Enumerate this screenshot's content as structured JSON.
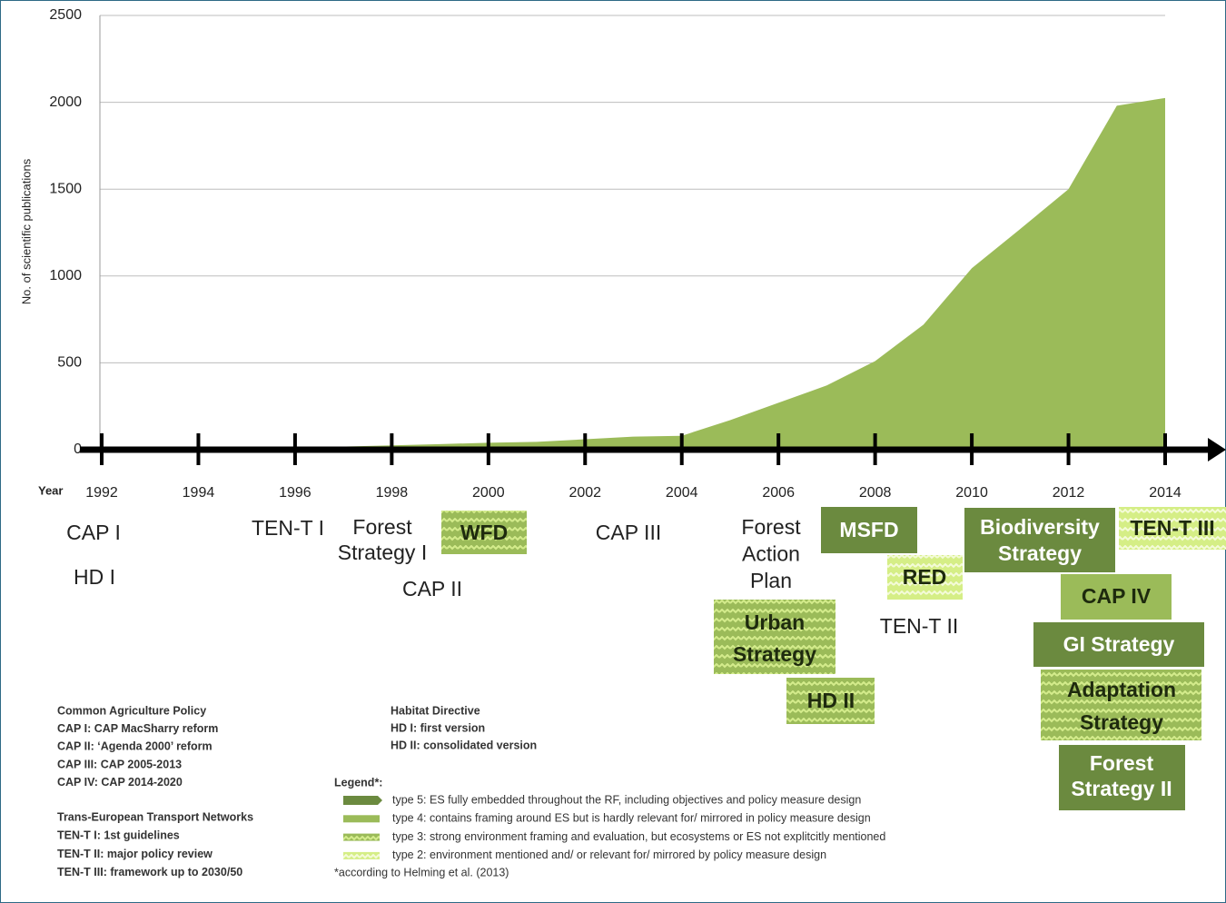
{
  "chart_data": {
    "type": "area",
    "ylabel": "No. of scientific publications",
    "xlabel": "Year",
    "x": [
      1992,
      1993,
      1994,
      1995,
      1996,
      1997,
      1998,
      1999,
      2000,
      2001,
      2002,
      2003,
      2004,
      2005,
      2006,
      2007,
      2008,
      2009,
      2010,
      2011,
      2012,
      2013,
      2014
    ],
    "series": [
      {
        "color": "#9bbb59",
        "values": [
          0,
          2,
          5,
          8,
          12,
          18,
          25,
          32,
          40,
          45,
          60,
          75,
          80,
          170,
          270,
          370,
          510,
          720,
          1045,
          1270,
          1500,
          1980,
          2025
        ]
      }
    ],
    "xlim": [
      1992,
      2014
    ],
    "xticks": [
      1992,
      1994,
      1996,
      1998,
      2000,
      2002,
      2004,
      2006,
      2008,
      2010,
      2012,
      2014
    ],
    "ylim": [
      0,
      2500
    ],
    "yticks": [
      0,
      500,
      1000,
      1500,
      2000,
      2500
    ],
    "grid": true,
    "annotations": [
      {
        "lines": [
          "CAP I"
        ],
        "kind": null
      },
      {
        "lines": [
          "HD I"
        ],
        "kind": null
      },
      {
        "lines": [
          "TEN-T I"
        ],
        "kind": null
      },
      {
        "lines": [
          "Forest",
          "Strategy I"
        ],
        "kind": null
      },
      {
        "lines": [
          "WFD"
        ],
        "kind": 3
      },
      {
        "lines": [
          "CAP III"
        ],
        "kind": null
      },
      {
        "lines": [
          "CAP II"
        ],
        "kind": null
      },
      {
        "lines": [
          "Forest",
          "Action",
          "Plan"
        ],
        "kind": null
      },
      {
        "lines": [
          "MSFD"
        ],
        "kind": 5
      },
      {
        "lines": [
          "RED"
        ],
        "kind": 2
      },
      {
        "lines": [
          "TEN-T II"
        ],
        "kind": null
      },
      {
        "lines": [
          "Biodiversity",
          "Strategy"
        ],
        "kind": 5
      },
      {
        "lines": [
          "TEN-T III"
        ],
        "kind": 2
      },
      {
        "lines": [
          "CAP IV"
        ],
        "kind": 4
      },
      {
        "lines": [
          "GI Strategy"
        ],
        "kind": 5
      },
      {
        "lines": [
          "Urban",
          "Strategy"
        ],
        "kind": 3
      },
      {
        "lines": [
          "HD II"
        ],
        "kind": 3
      },
      {
        "lines": [
          "Adaptation",
          "Strategy"
        ],
        "kind": 3
      },
      {
        "lines": [
          "Forest",
          "Strategy II"
        ],
        "kind": 5
      }
    ],
    "glossary": [
      [
        "Common Agriculture Policy",
        "CAP I: CAP MacSharry reform",
        "CAP II: ‘Agenda 2000’ reform",
        "CAP III: CAP 2005-2013",
        "CAP IV: CAP 2014-2020"
      ],
      [
        "Trans-European Transport Networks",
        "TEN-T I: 1st guidelines",
        "TEN-T II: major policy review",
        "TEN-T III: framework up to 2030/50"
      ],
      [
        "Habitat Directive",
        "HD I: first version",
        "HD II: consolidated version"
      ]
    ],
    "legend_title": "Legend*:",
    "legend": [
      {
        "kind": 5,
        "label": "type 5: ES fully embedded throughout the RF, including objectives and policy measure design"
      },
      {
        "kind": 4,
        "label": "type 4: contains framing around ES but is hardly relevant for/ mirrored in policy measure design"
      },
      {
        "kind": 3,
        "label": "type 3: strong environment framing and evaluation, but ecosystems or ES not explitcitly mentioned"
      },
      {
        "kind": 2,
        "label": "type 2: environment mentioned and/ or relevant for/ mirrored by policy measure design"
      }
    ],
    "legend_note": "*according to Helming et al. (2013)"
  }
}
